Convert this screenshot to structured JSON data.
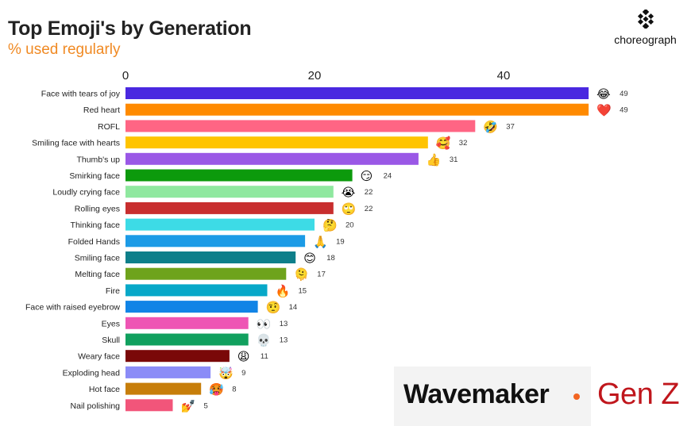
{
  "header": {
    "title": "Top Emoji's by Generation",
    "subtitle": "% used regularly",
    "brand": "choreograph"
  },
  "footer": {
    "agency": "Wavemaker",
    "generation": "Gen Z"
  },
  "chart_data": {
    "type": "bar",
    "orientation": "horizontal",
    "title": "Top Emoji's by Generation",
    "subtitle": "% used regularly",
    "xlim": [
      0,
      49
    ],
    "x_ticks": [
      0,
      20,
      40
    ],
    "categories": [
      "Face with tears of joy",
      "Red heart",
      "ROFL",
      "Smiling face with hearts",
      "Thumb's up",
      "Smirking face",
      "Loudly crying face",
      "Rolling eyes",
      "Thinking face",
      "Folded Hands",
      "Smiling face",
      "Melting face",
      "Fire",
      "Face with raised eyebrow",
      "Eyes",
      "Skull",
      "Weary face",
      "Exploding head",
      "Hot face",
      "Nail polishing"
    ],
    "values": [
      49,
      49,
      37,
      32,
      31,
      24,
      22,
      22,
      20,
      19,
      18,
      17,
      15,
      14,
      13,
      13,
      11,
      9,
      8,
      5
    ],
    "emojis": [
      "😂",
      "❤️",
      "🤣",
      "🥰",
      "👍",
      "😏",
      "😭",
      "🙄",
      "🤔",
      "🙏",
      "😊",
      "🫠",
      "🔥",
      "🤨",
      "👀",
      "💀",
      "😩",
      "🤯",
      "🥵",
      "💅"
    ],
    "colors": [
      "#4a28e0",
      "#ff8a00",
      "#ff6584",
      "#ffc400",
      "#9a58e6",
      "#0c9a0c",
      "#8fe89f",
      "#c82e2e",
      "#3ddbe6",
      "#1c9be6",
      "#0e7f8a",
      "#6ea31c",
      "#07a8c8",
      "#1184e6",
      "#ee55b4",
      "#11a05e",
      "#7a0808",
      "#8b8cf7",
      "#c77e0a",
      "#f2557a"
    ]
  }
}
